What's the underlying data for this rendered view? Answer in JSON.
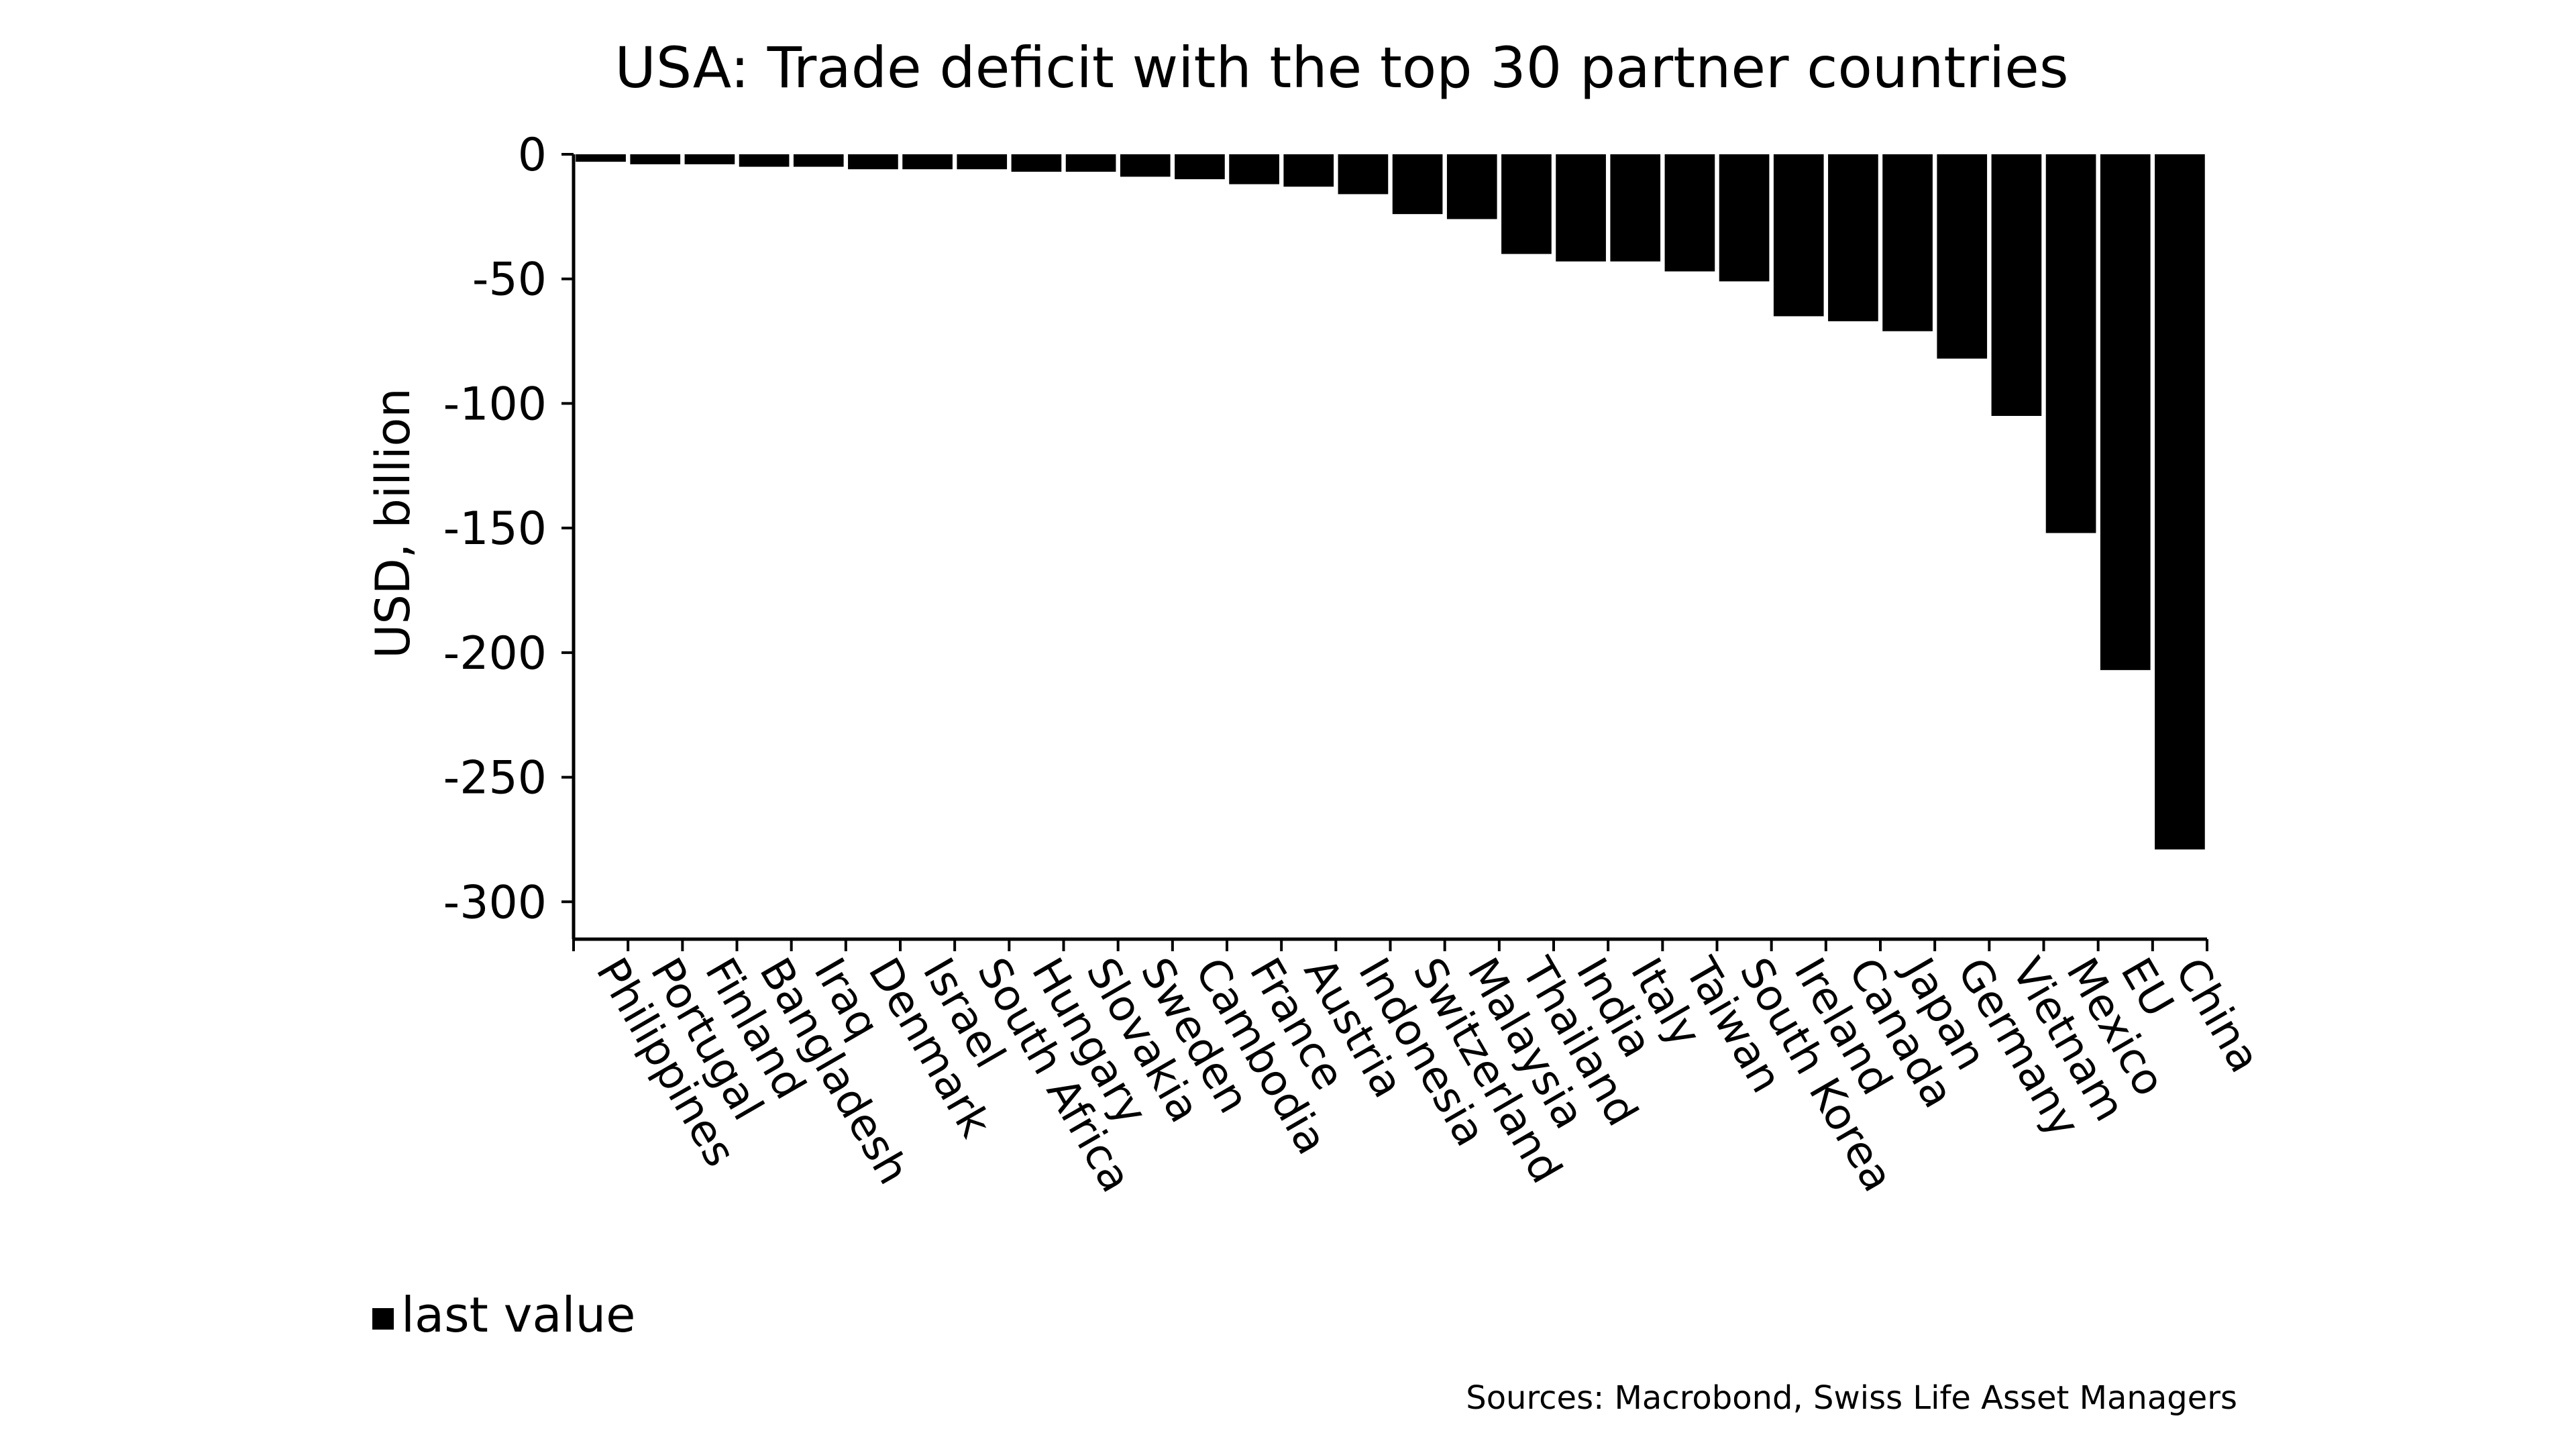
{
  "chart_data": {
    "type": "bar",
    "title": "USA: Trade deficit with the top 30 partner countries",
    "xlabel": "",
    "ylabel": "USD, billion",
    "ylim": [
      -315,
      0
    ],
    "yticks": [
      0,
      -50,
      -100,
      -150,
      -200,
      -250,
      -300
    ],
    "grid": false,
    "legend": {
      "position": "bottom-left",
      "entries": [
        "last value"
      ]
    },
    "categories": [
      "Philippines",
      "Portugal",
      "Finland",
      "Bangladesh",
      "Iraq",
      "Denmark",
      "Israel",
      "South Africa",
      "Hungary",
      "Slovakia",
      "Sweden",
      "Cambodia",
      "France",
      "Austria",
      "Indonesia",
      "Switzerland",
      "Malaysia",
      "Thailand",
      "India",
      "Italy",
      "Taiwan",
      "South Korea",
      "Ireland",
      "Canada",
      "Japan",
      "Germany",
      "Vietnam",
      "Mexico",
      "EU",
      "China"
    ],
    "series": [
      {
        "name": "last value",
        "color": "#000000",
        "values": [
          -3,
          -4,
          -4,
          -5,
          -5,
          -6,
          -6,
          -6,
          -7,
          -7,
          -9,
          -10,
          -12,
          -13,
          -16,
          -24,
          -26,
          -40,
          -43,
          -43,
          -47,
          -51,
          -65,
          -67,
          -71,
          -82,
          -105,
          -152,
          -207,
          -279
        ]
      }
    ]
  },
  "footer": {
    "source": "Sources: Macrobond, Swiss Life Asset Managers"
  }
}
